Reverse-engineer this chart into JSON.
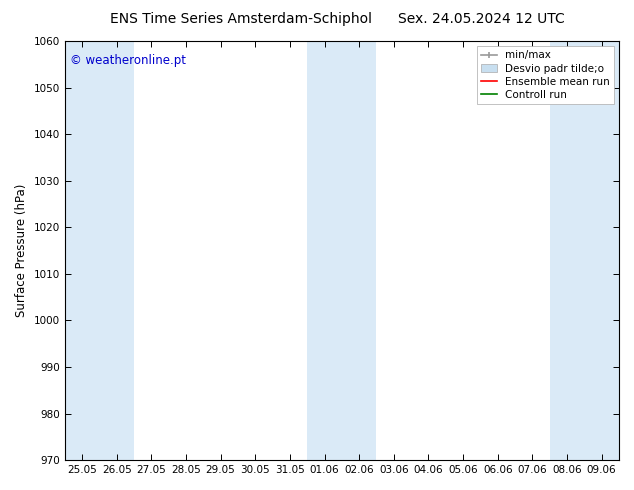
{
  "title_left": "ENS Time Series Amsterdam-Schiphol",
  "title_right": "Sex. 24.05.2024 12 UTC",
  "ylabel": "Surface Pressure (hPa)",
  "ylim": [
    970,
    1060
  ],
  "yticks": [
    970,
    980,
    990,
    1000,
    1010,
    1020,
    1030,
    1040,
    1050,
    1060
  ],
  "xtick_labels": [
    "25.05",
    "26.05",
    "27.05",
    "28.05",
    "29.05",
    "30.05",
    "31.05",
    "01.06",
    "02.06",
    "03.06",
    "04.06",
    "05.06",
    "06.06",
    "07.06",
    "08.06",
    "09.06"
  ],
  "watermark": "© weatheronline.pt",
  "watermark_color": "#0000cc",
  "bg_color": "#ffffff",
  "shaded_band_color": "#daeaf7",
  "shaded_ranges": [
    [
      0,
      1
    ],
    [
      7,
      8
    ],
    [
      14,
      15
    ]
  ],
  "legend_entries": [
    {
      "label": "min/max",
      "color": "#999999"
    },
    {
      "label": "Desvio padr tilde;o",
      "color": "#c8dff0"
    },
    {
      "label": "Ensemble mean run",
      "color": "#ff0000"
    },
    {
      "label": "Controll run",
      "color": "#008000"
    }
  ],
  "title_fontsize": 10,
  "tick_fontsize": 7.5,
  "ylabel_fontsize": 8.5,
  "legend_fontsize": 7.5,
  "watermark_fontsize": 8.5
}
